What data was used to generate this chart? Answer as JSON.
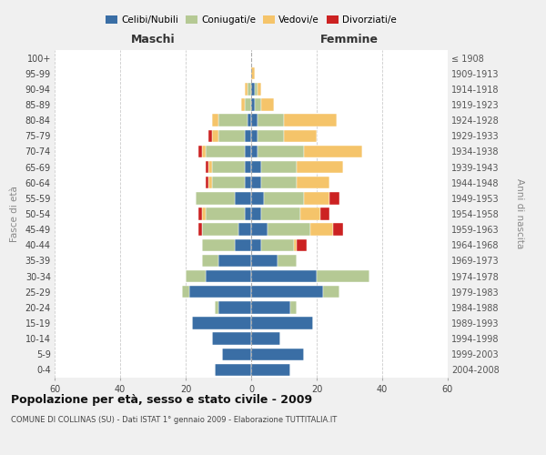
{
  "age_groups": [
    "0-4",
    "5-9",
    "10-14",
    "15-19",
    "20-24",
    "25-29",
    "30-34",
    "35-39",
    "40-44",
    "45-49",
    "50-54",
    "55-59",
    "60-64",
    "65-69",
    "70-74",
    "75-79",
    "80-84",
    "85-89",
    "90-94",
    "95-99",
    "100+"
  ],
  "birth_years": [
    "2004-2008",
    "1999-2003",
    "1994-1998",
    "1989-1993",
    "1984-1988",
    "1979-1983",
    "1974-1978",
    "1969-1973",
    "1964-1968",
    "1959-1963",
    "1954-1958",
    "1949-1953",
    "1944-1948",
    "1939-1943",
    "1934-1938",
    "1929-1933",
    "1924-1928",
    "1919-1923",
    "1914-1918",
    "1909-1913",
    "≤ 1908"
  ],
  "male_celibi": [
    11,
    9,
    12,
    18,
    10,
    19,
    14,
    10,
    5,
    4,
    2,
    5,
    2,
    2,
    2,
    2,
    1,
    0,
    0,
    0,
    0
  ],
  "male_coniugati": [
    0,
    0,
    0,
    0,
    1,
    2,
    6,
    5,
    10,
    11,
    12,
    12,
    10,
    10,
    12,
    8,
    9,
    2,
    1,
    0,
    0
  ],
  "male_vedovi": [
    0,
    0,
    0,
    0,
    0,
    0,
    0,
    0,
    0,
    0,
    1,
    0,
    1,
    1,
    1,
    2,
    2,
    1,
    1,
    0,
    0
  ],
  "male_divorziati": [
    0,
    0,
    0,
    0,
    0,
    0,
    0,
    0,
    0,
    1,
    1,
    0,
    1,
    1,
    1,
    1,
    0,
    0,
    0,
    0,
    0
  ],
  "female_celibi": [
    12,
    16,
    9,
    19,
    12,
    22,
    20,
    8,
    3,
    5,
    3,
    4,
    3,
    3,
    2,
    2,
    2,
    1,
    1,
    0,
    0
  ],
  "female_coniugati": [
    0,
    0,
    0,
    0,
    2,
    5,
    16,
    6,
    10,
    13,
    12,
    12,
    11,
    11,
    14,
    8,
    8,
    2,
    1,
    0,
    0
  ],
  "female_vedovi": [
    0,
    0,
    0,
    0,
    0,
    0,
    0,
    0,
    1,
    7,
    6,
    8,
    10,
    14,
    18,
    10,
    16,
    4,
    1,
    1,
    0
  ],
  "female_divorziati": [
    0,
    0,
    0,
    0,
    0,
    0,
    0,
    0,
    3,
    3,
    3,
    3,
    0,
    0,
    0,
    0,
    0,
    0,
    0,
    0,
    0
  ],
  "color_celibi": "#3a6ea5",
  "color_coniugati": "#b5c994",
  "color_vedovi": "#f5c46a",
  "color_divorziati": "#cc2222",
  "title": "Popolazione per età, sesso e stato civile - 2009",
  "subtitle": "COMUNE DI COLLINAS (SU) - Dati ISTAT 1° gennaio 2009 - Elaborazione TUTTITALIA.IT",
  "xlabel_left": "Maschi",
  "xlabel_right": "Femmine",
  "ylabel_left": "Fasce di età",
  "ylabel_right": "Anni di nascita",
  "xlim": 60,
  "background_color": "#f0f0f0",
  "plot_bg_color": "#ffffff"
}
